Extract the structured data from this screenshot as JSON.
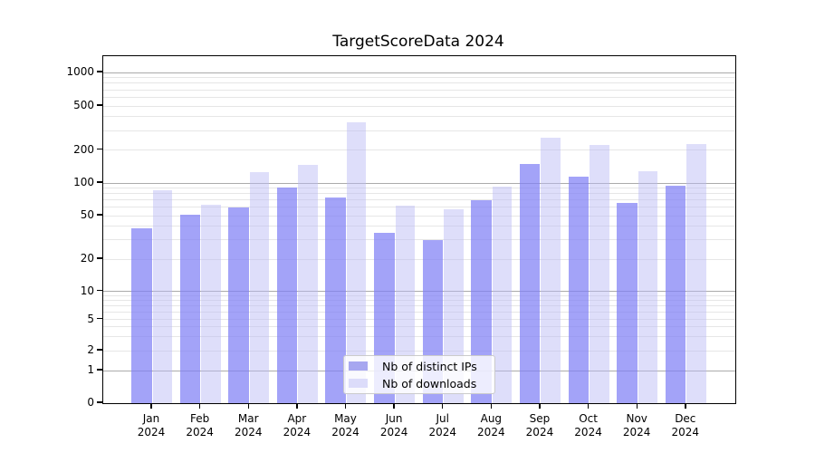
{
  "chart_data": {
    "type": "bar",
    "title": "TargetScoreData 2024",
    "categories": [
      "Jan",
      "Feb",
      "Mar",
      "Apr",
      "May",
      "Jun",
      "Jul",
      "Aug",
      "Sep",
      "Oct",
      "Nov",
      "Dec"
    ],
    "category_year": "2024",
    "series": [
      {
        "name": "Nb of distinct IPs",
        "color_hex": "#a7a7f0",
        "values": [
          38,
          51,
          59,
          90,
          74,
          35,
          30,
          70,
          150,
          114,
          65,
          95
        ]
      },
      {
        "name": "Nb of downloads",
        "color_hex": "#dcdcfa",
        "values": [
          85,
          63,
          125,
          145,
          355,
          62,
          57,
          92,
          257,
          222,
          128,
          228
        ]
      }
    ],
    "y_ticks": [
      0,
      1,
      2,
      5,
      10,
      20,
      50,
      100,
      200,
      500,
      1000
    ],
    "y_scale": "log-like with linear 0-1 segment",
    "ylim": [
      0,
      1400
    ],
    "grid": "on",
    "major_grid_values": [
      1,
      10,
      100,
      1000
    ],
    "legend_position": "lower-center",
    "colors": {
      "bar_dark": "#a7a7f0",
      "bar_light": "#dcdcfa",
      "major_grid": "#ababab",
      "minor_grid": "#e6e6e6",
      "axis": "#000000"
    }
  }
}
